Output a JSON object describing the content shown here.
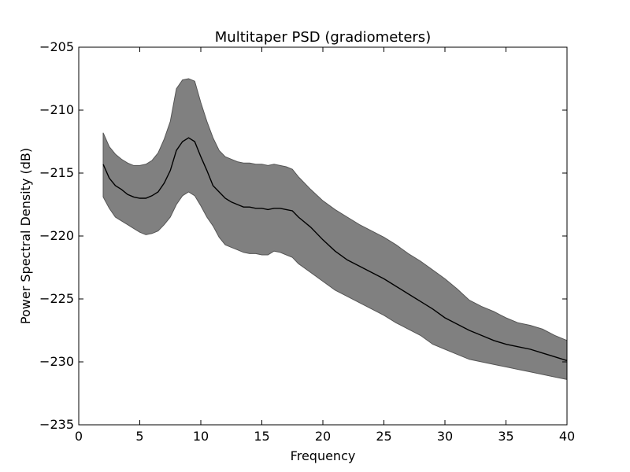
{
  "chart_data": {
    "type": "area",
    "title": "Multitaper PSD (gradiometers)",
    "xlabel": "Frequency",
    "ylabel": "Power Spectral Density (dB)",
    "xlim": [
      0,
      40
    ],
    "ylim": [
      -235,
      -205
    ],
    "x_ticks": [
      0,
      5,
      10,
      15,
      20,
      25,
      30,
      35,
      40
    ],
    "y_ticks": [
      -205,
      -210,
      -215,
      -220,
      -225,
      -230,
      -235
    ],
    "grid": false,
    "legend": "none",
    "colors": {
      "band_fill": "#808080",
      "band_edge": "#555555",
      "mean_line": "#000000"
    },
    "x": [
      2,
      2.5,
      3,
      3.5,
      4,
      4.5,
      5,
      5.5,
      6,
      6.5,
      7,
      7.5,
      8,
      8.5,
      9,
      9.5,
      10,
      10.5,
      11,
      11.5,
      12,
      12.5,
      13,
      13.5,
      14,
      14.5,
      15,
      15.5,
      16,
      16.5,
      17,
      17.5,
      18,
      19,
      20,
      21,
      22,
      23,
      24,
      25,
      26,
      27,
      28,
      29,
      30,
      31,
      32,
      33,
      34,
      35,
      36,
      37,
      38,
      39,
      40
    ],
    "mean": [
      -214.3,
      -215.4,
      -216.0,
      -216.3,
      -216.7,
      -216.9,
      -217.0,
      -217.0,
      -216.8,
      -216.5,
      -215.8,
      -214.8,
      -213.2,
      -212.5,
      -212.2,
      -212.5,
      -213.7,
      -214.8,
      -216.0,
      -216.5,
      -217.0,
      -217.3,
      -217.5,
      -217.7,
      -217.7,
      -217.8,
      -217.8,
      -217.9,
      -217.8,
      -217.8,
      -217.9,
      -218.0,
      -218.5,
      -219.3,
      -220.3,
      -221.2,
      -221.9,
      -222.4,
      -222.9,
      -223.4,
      -224.0,
      -224.6,
      -225.2,
      -225.8,
      -226.5,
      -227.0,
      -227.5,
      -227.9,
      -228.3,
      -228.6,
      -228.8,
      -229.0,
      -229.3,
      -229.6,
      -229.9
    ],
    "upper": [
      -211.8,
      -212.9,
      -213.5,
      -213.9,
      -214.2,
      -214.4,
      -214.4,
      -214.3,
      -214.0,
      -213.4,
      -212.3,
      -210.9,
      -208.3,
      -207.6,
      -207.5,
      -207.7,
      -209.4,
      -210.9,
      -212.2,
      -213.2,
      -213.7,
      -213.9,
      -214.1,
      -214.2,
      -214.2,
      -214.3,
      -214.3,
      -214.4,
      -214.3,
      -214.4,
      -214.5,
      -214.7,
      -215.3,
      -216.3,
      -217.2,
      -217.9,
      -218.5,
      -219.1,
      -219.6,
      -220.1,
      -220.7,
      -221.4,
      -222.0,
      -222.7,
      -223.4,
      -224.2,
      -225.1,
      -225.6,
      -226.0,
      -226.5,
      -226.9,
      -227.1,
      -227.4,
      -227.9,
      -228.3
    ],
    "lower": [
      -216.9,
      -217.8,
      -218.5,
      -218.8,
      -219.1,
      -219.4,
      -219.7,
      -219.9,
      -219.8,
      -219.6,
      -219.1,
      -218.5,
      -217.5,
      -216.8,
      -216.5,
      -216.8,
      -217.6,
      -218.5,
      -219.2,
      -220.1,
      -220.7,
      -220.9,
      -221.1,
      -221.3,
      -221.4,
      -221.4,
      -221.5,
      -221.5,
      -221.2,
      -221.3,
      -221.5,
      -221.7,
      -222.2,
      -222.9,
      -223.6,
      -224.3,
      -224.8,
      -225.3,
      -225.8,
      -226.3,
      -226.9,
      -227.4,
      -227.9,
      -228.6,
      -229.0,
      -229.4,
      -229.8,
      -230.0,
      -230.2,
      -230.4,
      -230.6,
      -230.8,
      -231.0,
      -231.2,
      -231.4
    ]
  }
}
